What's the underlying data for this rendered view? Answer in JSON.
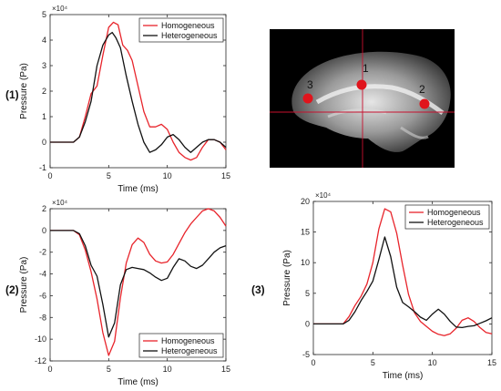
{
  "colors": {
    "homogeneous": "#e8242b",
    "heterogeneous": "#111111",
    "marker": "#e0141c",
    "crosshair": "#c8102e"
  },
  "panel_labels": [
    "(1)",
    "(2)",
    "(3)"
  ],
  "brain": {
    "labels": [
      "1",
      "2",
      "3"
    ],
    "points": [
      {
        "label": "1"
      },
      {
        "label": "2"
      },
      {
        "label": "3"
      }
    ]
  },
  "chart_data": [
    {
      "type": "line",
      "panel": "(1)",
      "xlabel": "Time (ms)",
      "ylabel": "Pressure (Pa)",
      "exponent": "×10⁴",
      "xlim": [
        0,
        15
      ],
      "ylim": [
        -1,
        5
      ],
      "xticks": [
        0,
        5,
        10,
        15
      ],
      "yticks": [
        -1,
        0,
        1,
        2,
        3,
        4,
        5
      ],
      "legend": "top-right",
      "series": [
        {
          "name": "Homogeneous",
          "key": "homogeneous",
          "x": [
            0,
            2,
            2.5,
            3,
            3.5,
            4,
            4.5,
            5,
            5.4,
            5.8,
            6.2,
            6.6,
            7,
            7.5,
            8,
            8.5,
            9,
            9.5,
            10,
            10.5,
            11,
            11.5,
            12,
            12.5,
            13,
            13.5,
            14,
            14.5,
            15
          ],
          "y": [
            0,
            0,
            0.2,
            1.0,
            1.9,
            2.2,
            3.4,
            4.5,
            4.7,
            4.6,
            3.8,
            3.6,
            3.2,
            2.2,
            1.2,
            0.6,
            0.6,
            0.7,
            0.5,
            0,
            -0.4,
            -0.6,
            -0.7,
            -0.6,
            -0.2,
            0.1,
            0.1,
            0,
            -0.3
          ]
        },
        {
          "name": "Heterogeneous",
          "key": "heterogeneous",
          "x": [
            0,
            2,
            2.5,
            3,
            3.5,
            4,
            4.5,
            5,
            5.3,
            5.6,
            6,
            6.5,
            7,
            7.5,
            8,
            8.5,
            9,
            9.5,
            10,
            10.5,
            11,
            11.5,
            12,
            12.5,
            13,
            13.5,
            14,
            14.5,
            15
          ],
          "y": [
            0,
            0,
            0.2,
            0.8,
            1.6,
            3.0,
            3.8,
            4.2,
            4.3,
            4.1,
            3.7,
            2.6,
            1.6,
            0.7,
            0,
            -0.4,
            -0.3,
            -0.1,
            0.2,
            0.3,
            0.1,
            -0.2,
            -0.4,
            -0.2,
            0,
            0.1,
            0.1,
            0,
            -0.2
          ]
        }
      ]
    },
    {
      "type": "line",
      "panel": "(2)",
      "xlabel": "Time (ms)",
      "ylabel": "Pressure (Pa)",
      "exponent": "×10⁴",
      "xlim": [
        0,
        15
      ],
      "ylim": [
        -12,
        2
      ],
      "xticks": [
        0,
        5,
        10,
        15
      ],
      "yticks": [
        -12,
        -10,
        -8,
        -6,
        -4,
        -2,
        0,
        2
      ],
      "legend": "bottom-right",
      "series": [
        {
          "name": "Homogeneous",
          "key": "homogeneous",
          "x": [
            0,
            2,
            2.5,
            3,
            3.5,
            4,
            4.5,
            5,
            5.5,
            6,
            6.5,
            7,
            7.5,
            8,
            8.5,
            9,
            9.5,
            10,
            10.5,
            11,
            11.5,
            12,
            12.5,
            13,
            13.5,
            14,
            14.5,
            15
          ],
          "y": [
            0,
            0,
            -0.4,
            -1.8,
            -3.8,
            -6.3,
            -9.4,
            -11.5,
            -10.2,
            -6.2,
            -3.0,
            -1.3,
            -0.7,
            -1.1,
            -2.2,
            -2.8,
            -3.0,
            -2.9,
            -2.2,
            -1.2,
            -0.2,
            0.6,
            1.2,
            1.8,
            2.0,
            1.8,
            1.2,
            0.4
          ]
        },
        {
          "name": "Heterogeneous",
          "key": "heterogeneous",
          "x": [
            0,
            2,
            2.5,
            3,
            3.5,
            4,
            4.5,
            5,
            5.5,
            6,
            6.5,
            7,
            7.5,
            8,
            8.5,
            9,
            9.5,
            10,
            10.5,
            11,
            11.5,
            12,
            12.5,
            13,
            13.5,
            14,
            14.5,
            15
          ],
          "y": [
            0,
            0,
            -0.3,
            -1.4,
            -3.2,
            -4.2,
            -6.8,
            -9.8,
            -8.5,
            -5.0,
            -3.6,
            -3.4,
            -3.5,
            -3.6,
            -3.9,
            -4.3,
            -4.6,
            -4.4,
            -3.4,
            -2.6,
            -2.8,
            -3.3,
            -3.5,
            -3.2,
            -2.6,
            -2.0,
            -1.6,
            -1.4
          ]
        }
      ]
    },
    {
      "type": "line",
      "panel": "(3)",
      "xlabel": "Time (ms)",
      "ylabel": "Pressure (Pa)",
      "exponent": "×10⁴",
      "xlim": [
        0,
        15
      ],
      "ylim": [
        -5,
        20
      ],
      "xticks": [
        0,
        5,
        10,
        15
      ],
      "yticks": [
        -5,
        0,
        5,
        10,
        15,
        20
      ],
      "legend": "top-right",
      "series": [
        {
          "name": "Homogeneous",
          "key": "homogeneous",
          "x": [
            0,
            2.5,
            3,
            3.5,
            4,
            4.5,
            5,
            5.5,
            6,
            6.5,
            7,
            7.5,
            8,
            8.5,
            9,
            9.5,
            10,
            10.5,
            11,
            11.5,
            12,
            12.5,
            13,
            13.5,
            14,
            14.5,
            15
          ],
          "y": [
            0,
            0,
            1.2,
            3.0,
            4.5,
            6.5,
            10.0,
            15.5,
            18.8,
            18.3,
            14.8,
            9.6,
            4.8,
            1.8,
            0.4,
            -0.4,
            -1.2,
            -1.7,
            -1.9,
            -1.6,
            -0.7,
            0.6,
            1.0,
            0.4,
            -0.6,
            -1.4,
            -1.6
          ]
        },
        {
          "name": "Heterogeneous",
          "key": "heterogeneous",
          "x": [
            0,
            2.5,
            3,
            3.5,
            4,
            4.5,
            5,
            5.5,
            6,
            6.5,
            7,
            7.5,
            8,
            8.5,
            9,
            9.5,
            10,
            10.5,
            11,
            11.5,
            12,
            12.5,
            13,
            13.5,
            14,
            14.5,
            15
          ],
          "y": [
            0,
            0,
            0.6,
            2.0,
            3.8,
            5.3,
            7.0,
            10.5,
            14.2,
            11.0,
            6.0,
            3.5,
            2.8,
            2.0,
            1.1,
            0.6,
            1.6,
            2.4,
            1.6,
            0.4,
            -0.5,
            -0.6,
            -0.4,
            -0.3,
            0.1,
            0.5,
            1.0
          ]
        }
      ]
    }
  ]
}
